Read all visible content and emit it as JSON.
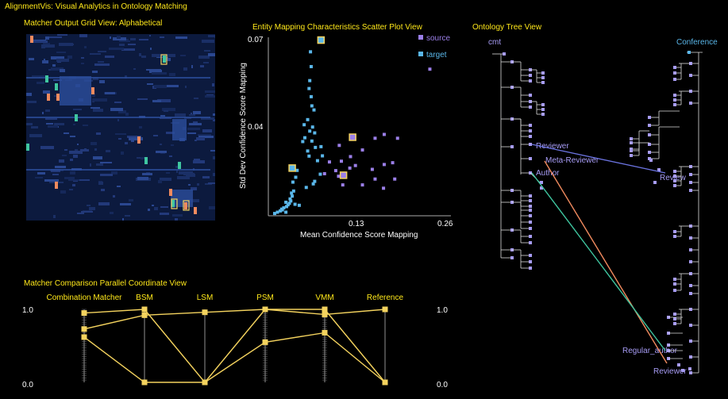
{
  "app_title": "AlignmentVis: Visual Analytics in Ontology Matching",
  "panels": {
    "grid_title": "Matcher Output Grid View: Alphabetical",
    "scatter_title": "Entity Mapping Characteristics Scatter Plot View",
    "tree_title": "Ontology Tree View",
    "parallel_title": "Matcher Comparison Parallel Coordinate View"
  },
  "colors": {
    "title": "#ffe81a",
    "source": "#9b7fe8",
    "target": "#5ab7ea",
    "line_blue": "#6b73e0",
    "line_orange": "#f08a5e",
    "line_green": "#3fc6a0",
    "tree_node": "#a79cf5",
    "parallel_line": "#f4d35e"
  },
  "chart_data": [
    {
      "type": "scatter",
      "xlabel": "Mean Confidence Score Mapping",
      "ylabel": "Std Dev Confidence Score Mapping",
      "x_ticks": [
        "0.13",
        "0.26"
      ],
      "y_ticks": [
        "0.04",
        "0.07"
      ],
      "xlim": [
        0,
        0.26
      ],
      "ylim": [
        0,
        0.07
      ],
      "legend": [
        "source",
        "target"
      ],
      "legend_position": "top-right",
      "series": [
        {
          "name": "source",
          "points": [
            [
              0.23,
              0.0575
            ],
            [
              0.184,
              0.0304
            ],
            [
              0.152,
              0.0304
            ],
            [
              0.165,
              0.0319
            ],
            [
              0.104,
              0.0214
            ],
            [
              0.165,
              0.0201
            ],
            [
              0.177,
              0.0208
            ],
            [
              0.148,
              0.0182
            ],
            [
              0.152,
              0.0144
            ],
            [
              0.18,
              0.0144
            ],
            [
              0.134,
              0.0121
            ],
            [
              0.164,
              0.0108
            ],
            [
              0.134,
              0.0258
            ],
            [
              0.117,
              0.0232
            ],
            [
              0.096,
              0.0177
            ],
            [
              0.1,
              0.0155
            ],
            [
              0.087,
              0.0211
            ],
            [
              0.08,
              0.0165
            ],
            [
              0.101,
              0.0276
            ],
            [
              0.124,
              0.0197
            ],
            [
              0.116,
              0.0187
            ],
            [
              0.106,
              0.0121
            ]
          ],
          "highlighted": [
            [
              0.12,
              0.0308
            ],
            [
              0.107,
              0.0159
            ]
          ]
        },
        {
          "name": "target",
          "points": [
            [
              0.06,
              0.0643
            ],
            [
              0.061,
              0.0585
            ],
            [
              0.059,
              0.053
            ],
            [
              0.058,
              0.0499
            ],
            [
              0.061,
              0.0467
            ],
            [
              0.062,
              0.0431
            ],
            [
              0.065,
              0.0415
            ],
            [
              0.056,
              0.0377
            ],
            [
              0.051,
              0.0357
            ],
            [
              0.063,
              0.0348
            ],
            [
              0.059,
              0.0332
            ],
            [
              0.066,
              0.0325
            ],
            [
              0.052,
              0.0306
            ],
            [
              0.049,
              0.0291
            ],
            [
              0.062,
              0.0293
            ],
            [
              0.075,
              0.0271
            ],
            [
              0.067,
              0.0268
            ],
            [
              0.056,
              0.0254
            ],
            [
              0.077,
              0.0235
            ],
            [
              0.058,
              0.0234
            ],
            [
              0.07,
              0.0216
            ],
            [
              0.074,
              0.0163
            ],
            [
              0.066,
              0.0135
            ],
            [
              0.064,
              0.0125
            ],
            [
              0.054,
              0.0111
            ],
            [
              0.036,
              0.0097
            ],
            [
              0.033,
              0.0089
            ],
            [
              0.034,
              0.0077
            ],
            [
              0.031,
              0.0066
            ],
            [
              0.032,
              0.0058
            ],
            [
              0.03,
              0.0049
            ],
            [
              0.028,
              0.0043
            ],
            [
              0.026,
              0.0036
            ],
            [
              0.022,
              0.0031
            ],
            [
              0.02,
              0.0023
            ],
            [
              0.017,
              0.0019
            ],
            [
              0.013,
              0.0014
            ],
            [
              0.009,
              0.0009
            ],
            [
              0.025,
              0.0014
            ],
            [
              0.019,
              0.0026
            ],
            [
              0.025,
              0.0053
            ],
            [
              0.038,
              0.0045
            ],
            [
              0.044,
              0.0041
            ],
            [
              0.039,
              0.0151
            ],
            [
              0.041,
              0.0178
            ],
            [
              0.035,
              0.0132
            ]
          ],
          "highlighted": [
            [
              0.075,
              0.0689
            ],
            [
              0.034,
              0.0187
            ]
          ]
        }
      ]
    },
    {
      "type": "line",
      "title": "Matcher Comparison Parallel Coordinate View",
      "categories": [
        "Combination Matcher",
        "BSM",
        "LSM",
        "PSM",
        "VMM",
        "Reference"
      ],
      "ylim": [
        0,
        1
      ],
      "y_ticks_left": [
        "1.0",
        "0.0"
      ],
      "y_ticks_right": [
        "1.0",
        "0.0"
      ],
      "series": [
        {
          "values": [
            0.95,
            1.0,
            0.0,
            1.0,
            1.0,
            0.0
          ]
        },
        {
          "values": [
            0.73,
            0.92,
            0.96,
            1.0,
            0.93,
            1.0
          ]
        },
        {
          "values": [
            0.62,
            0.0,
            0.0,
            0.55,
            0.68,
            0.0
          ]
        }
      ]
    }
  ],
  "tree": {
    "left_root": "cmt",
    "right_root": "Conference",
    "left_nodes": [
      "Reviewer",
      "Meta-Reviewer",
      "Author"
    ],
    "right_nodes": [
      "Review",
      "Regular_author",
      "Reviewer"
    ]
  }
}
